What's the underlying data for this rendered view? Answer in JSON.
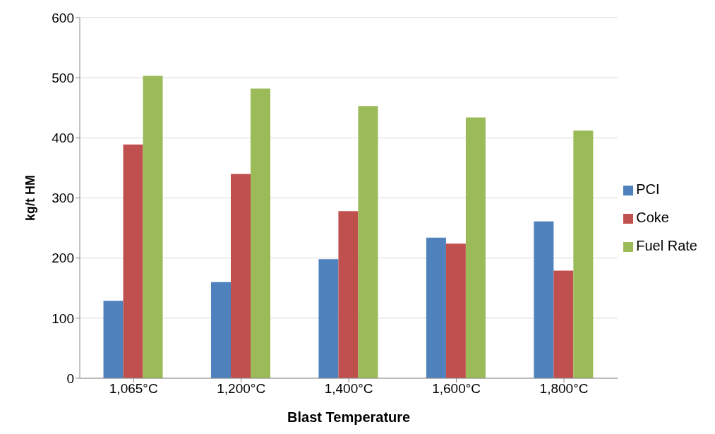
{
  "chart_data": {
    "type": "bar",
    "xlabel": "Blast Temperature",
    "ylabel": "kg/t HM",
    "categories": [
      "1,065°C",
      "1,200°C",
      "1,400°C",
      "1,600°C",
      "1,800°C"
    ],
    "series": [
      {
        "name": "PCI",
        "color": "#4f81bd",
        "values": [
          129,
          160,
          198,
          234,
          261
        ]
      },
      {
        "name": "Coke",
        "color": "#c0504d",
        "values": [
          389,
          340,
          278,
          224,
          179
        ]
      },
      {
        "name": "Fuel Rate",
        "color": "#9bbb59",
        "values": [
          503,
          482,
          453,
          434,
          412
        ]
      }
    ],
    "ylim": [
      0,
      600
    ],
    "yticks": [
      0,
      100,
      200,
      300,
      400,
      500,
      600
    ],
    "grid": "y",
    "legend": "right"
  }
}
